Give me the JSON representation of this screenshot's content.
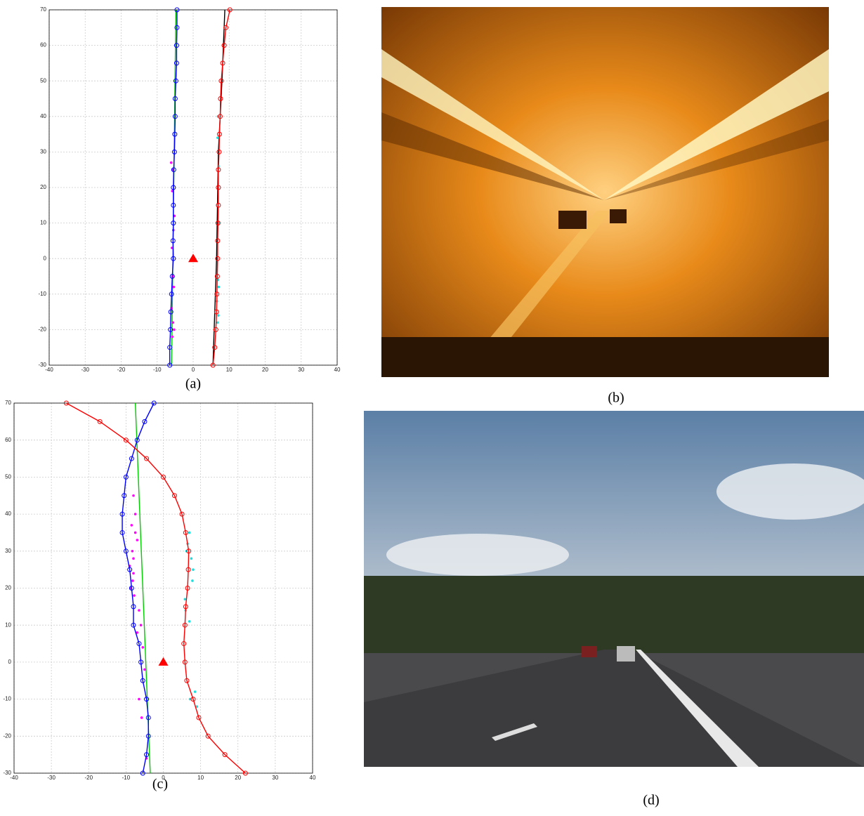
{
  "chart_data": [
    {
      "type": "line",
      "xlim": [
        -40,
        40
      ],
      "ylim": [
        -30,
        70
      ],
      "xticks": [
        -40,
        -30,
        -20,
        -10,
        0,
        10,
        20,
        30,
        40
      ],
      "yticks": [
        -30,
        -20,
        -10,
        0,
        10,
        20,
        30,
        40,
        50,
        60,
        70
      ],
      "grid": true,
      "series": [
        {
          "color": "#00cc00",
          "marker": "none",
          "x": [
            -6,
            -5.4,
            -4.8
          ],
          "values": [
            -30,
            20,
            70
          ]
        },
        {
          "color": "#000000",
          "marker": "none",
          "x": [
            5.5,
            6.5,
            7,
            8,
            8.8
          ],
          "values": [
            -30,
            0,
            30,
            50,
            70
          ]
        },
        {
          "color": "#ff00ff",
          "marker": "dot",
          "x": [
            -5.8,
            -5.6,
            -6,
            -5.4,
            -5.7,
            -5.9,
            -5.5,
            -5.2,
            -5.6,
            -6.1,
            -5.8,
            -5.3
          ],
          "values": [
            -22,
            -18,
            -14,
            -8,
            -5,
            3,
            8,
            12,
            25,
            27,
            19,
            -20
          ]
        },
        {
          "color": "#22dddd",
          "marker": "dot",
          "x": [
            6.8,
            7,
            6.6,
            7.1,
            6.9,
            7.2,
            6.7,
            7,
            6.8,
            6.9
          ],
          "values": [
            -18,
            -16,
            -12,
            -8,
            -6,
            10,
            15,
            26,
            34,
            40
          ]
        },
        {
          "color": "#0000ff",
          "marker": "circle",
          "x": [
            -6.5,
            -6.5,
            -6.3,
            -6.2,
            -6,
            -5.8,
            -5.5,
            -5.6,
            -5.5,
            -5.5,
            -5.5,
            -5.4,
            -5.2,
            -5.1,
            -5,
            -5,
            -4.8,
            -4.6,
            -4.6,
            -4.5,
            -4.5
          ],
          "values": [
            -30,
            -25,
            -20,
            -15,
            -10,
            -5,
            0,
            5,
            10,
            15,
            20,
            25,
            30,
            35,
            40,
            45,
            50,
            55,
            60,
            65,
            70
          ]
        },
        {
          "color": "#ff0000",
          "marker": "circle",
          "x": [
            5.5,
            6,
            6.3,
            6.5,
            6.6,
            6.7,
            6.8,
            6.8,
            6.9,
            7,
            7,
            7,
            7.2,
            7.3,
            7.5,
            7.6,
            7.8,
            8.2,
            8.6,
            9.1,
            10.2
          ],
          "values": [
            -30,
            -25,
            -20,
            -15,
            -10,
            -5,
            0,
            5,
            10,
            15,
            20,
            25,
            30,
            35,
            40,
            45,
            50,
            55,
            60,
            65,
            70
          ]
        },
        {
          "color": "#ff0000",
          "marker": "triangle",
          "x": [
            0
          ],
          "values": [
            0
          ]
        }
      ]
    },
    {
      "type": "line",
      "xlim": [
        -40,
        40
      ],
      "ylim": [
        -30,
        70
      ],
      "xticks": [
        -40,
        -30,
        -20,
        -10,
        0,
        10,
        20,
        30,
        40
      ],
      "yticks": [
        -30,
        -20,
        -10,
        0,
        10,
        20,
        30,
        40,
        50,
        60,
        70
      ],
      "grid": true,
      "series": [
        {
          "color": "#00cc00",
          "marker": "none",
          "x": [
            -3.5,
            -7.5
          ],
          "values": [
            -30,
            70
          ]
        },
        {
          "color": "#ff00ff",
          "marker": "dot",
          "x": [
            -8,
            -7.5,
            -8.5,
            -7,
            -8,
            -9,
            -8.2,
            -7.8,
            -6.5,
            -6,
            -7,
            -5.5,
            -5,
            -6.5,
            -8.8,
            -8,
            -7.5,
            -8.3,
            -5.8,
            -4.5
          ],
          "values": [
            45,
            40,
            37,
            33,
            28,
            26,
            22,
            18,
            14,
            10,
            8,
            4,
            -2,
            -10,
            20,
            24,
            35,
            30,
            -15,
            -26
          ]
        },
        {
          "color": "#22dddd",
          "marker": "dot",
          "x": [
            7,
            6.5,
            7.5,
            8,
            7.8,
            5.8,
            6,
            7,
            8.5,
            9,
            7.2,
            6.2
          ],
          "values": [
            35,
            32,
            28,
            25,
            22,
            17,
            14,
            11,
            -8,
            -12,
            -10,
            30
          ]
        },
        {
          "color": "#0000ff",
          "marker": "circle",
          "x": [
            -5.5,
            -4.5,
            -4,
            -4,
            -4.5,
            -5.5,
            -6,
            -6.5,
            -8,
            -8,
            -8.5,
            -9,
            -10,
            -11,
            -11,
            -10.5,
            -10,
            -8.5,
            -7,
            -5,
            -2.5
          ],
          "values": [
            -30,
            -25,
            -20,
            -15,
            -10,
            -5,
            0,
            5,
            10,
            15,
            20,
            25,
            30,
            35,
            40,
            45,
            50,
            55,
            60,
            65,
            70
          ]
        },
        {
          "color": "#ff0000",
          "marker": "circle",
          "x": [
            22,
            16.5,
            12,
            9.5,
            8,
            6.3,
            5.8,
            5.5,
            5.8,
            6,
            6.5,
            6.7,
            6.8,
            6,
            5,
            3,
            0,
            -4.5,
            -10,
            -17,
            -26
          ],
          "values": [
            -30,
            -25,
            -20,
            -15,
            -10,
            -5,
            0,
            5,
            10,
            15,
            20,
            25,
            30,
            35,
            40,
            45,
            50,
            55,
            60,
            65,
            70
          ]
        },
        {
          "color": "#ff0000",
          "marker": "triangle",
          "x": [
            0
          ],
          "values": [
            0
          ]
        }
      ]
    }
  ],
  "captions": [
    "(a)",
    "(b)",
    "(c)",
    "(d)"
  ]
}
